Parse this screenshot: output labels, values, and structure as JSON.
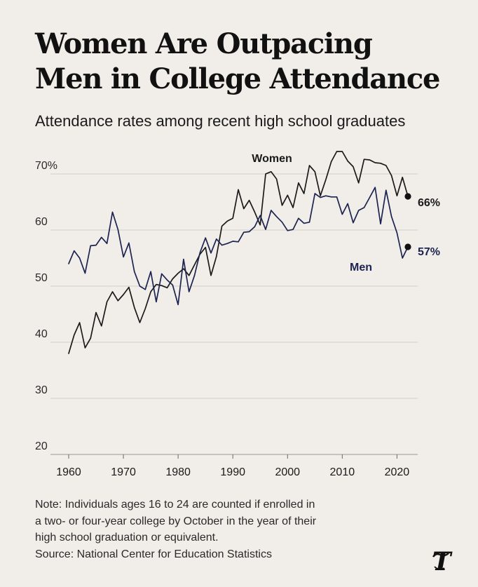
{
  "header": {
    "title_line1": "Women Are Outpacing",
    "title_line2": "Men in College Attendance",
    "subtitle": "Attendance rates among recent high school graduates"
  },
  "footer": {
    "note_line1": "Note: Individuals ages 16 to 24 are counted if enrolled in",
    "note_line2": "a two- or four-year college by October in the year of their",
    "note_line3": "high school graduation or equivalent.",
    "source": "Source: National Center for Education Statistics",
    "logo": "nyt-logo"
  },
  "colors": {
    "background": "#f1ede8",
    "women": "#1a1a1a",
    "men": "#1c2350",
    "grid": "#d3cfca"
  },
  "chart_data": {
    "type": "line",
    "title": "Women Are Outpacing Men in College Attendance",
    "subtitle": "Attendance rates among recent high school graduates",
    "xlabel": "",
    "ylabel": "",
    "xlim": [
      1960,
      2022
    ],
    "ylim": [
      20,
      72
    ],
    "x_ticks": [
      1960,
      1970,
      1980,
      1990,
      2000,
      2010,
      2020
    ],
    "y_ticks": [
      20,
      30,
      40,
      50,
      60,
      70
    ],
    "y_tick_labels": [
      "20",
      "30",
      "40",
      "50",
      "60",
      "70%"
    ],
    "grid": true,
    "legend": "direct labels",
    "x": [
      1960,
      1961,
      1962,
      1963,
      1964,
      1965,
      1966,
      1967,
      1968,
      1969,
      1970,
      1971,
      1972,
      1973,
      1974,
      1975,
      1976,
      1977,
      1978,
      1979,
      1980,
      1981,
      1982,
      1983,
      1984,
      1985,
      1986,
      1987,
      1988,
      1989,
      1990,
      1991,
      1992,
      1993,
      1994,
      1995,
      1996,
      1997,
      1998,
      1999,
      2000,
      2001,
      2002,
      2003,
      2004,
      2005,
      2006,
      2007,
      2008,
      2009,
      2010,
      2011,
      2012,
      2013,
      2014,
      2015,
      2016,
      2017,
      2018,
      2019,
      2020,
      2021,
      2022
    ],
    "series": [
      {
        "name": "Women",
        "color": "#1a1a1a",
        "end_label": "66%",
        "values": [
          38.0,
          41.3,
          43.5,
          39.0,
          40.7,
          45.3,
          42.9,
          47.2,
          49.0,
          47.4,
          48.5,
          49.8,
          46.2,
          43.5,
          46.0,
          49.0,
          50.3,
          50.1,
          49.7,
          51.3,
          52.3,
          53.1,
          51.9,
          53.8,
          55.7,
          56.9,
          51.9,
          55.3,
          60.7,
          61.6,
          62.1,
          67.2,
          63.8,
          65.3,
          63.2,
          60.9,
          70.0,
          70.4,
          69.1,
          64.4,
          66.2,
          64.0,
          68.4,
          66.5,
          71.5,
          70.4,
          66.1,
          69.0,
          72.2,
          74.0,
          74.0,
          72.3,
          71.3,
          68.4,
          72.6,
          72.5,
          72.0,
          71.9,
          71.5,
          69.7,
          66.1,
          69.4,
          66.0
        ]
      },
      {
        "name": "Men",
        "color": "#1c2350",
        "end_label": "57%",
        "values": [
          54.0,
          56.3,
          55.0,
          52.3,
          57.2,
          57.3,
          58.7,
          57.6,
          63.2,
          60.1,
          55.2,
          57.7,
          52.6,
          50.0,
          49.4,
          52.6,
          47.2,
          52.2,
          51.1,
          50.2,
          46.7,
          54.8,
          49.0,
          51.9,
          56.0,
          58.6,
          55.9,
          58.4,
          57.3,
          57.6,
          58.0,
          57.9,
          59.6,
          59.7,
          60.6,
          62.6,
          60.1,
          63.5,
          62.4,
          61.4,
          59.9,
          60.1,
          62.1,
          61.2,
          61.4,
          66.5,
          65.8,
          66.1,
          65.9,
          65.9,
          62.8,
          64.7,
          61.3,
          63.5,
          64.0,
          65.8,
          67.6,
          61.1,
          67.1,
          62.4,
          59.5,
          55.0,
          57.0
        ]
      }
    ]
  }
}
